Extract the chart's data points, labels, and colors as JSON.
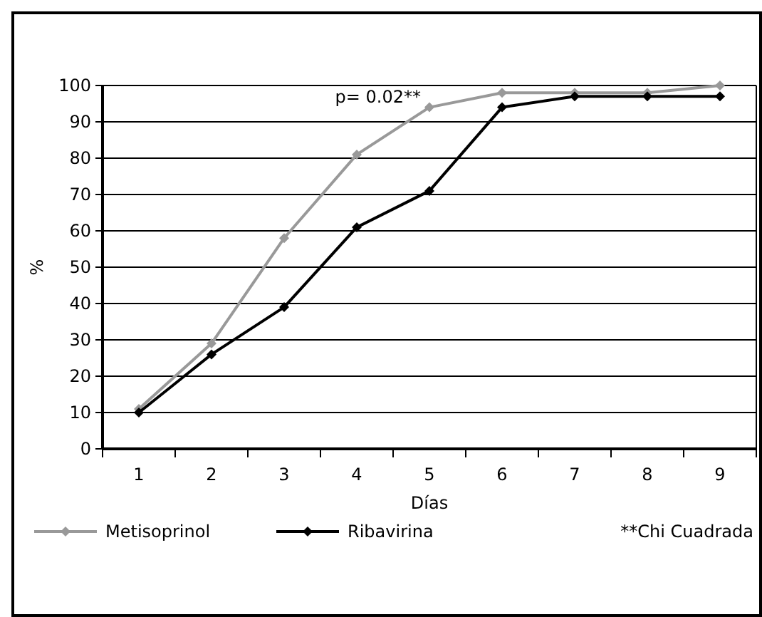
{
  "chart_data": {
    "type": "line",
    "xlabel": "Días",
    "ylabel": "%",
    "categories": [
      "1",
      "2",
      "3",
      "4",
      "5",
      "6",
      "7",
      "8",
      "9"
    ],
    "series": [
      {
        "name": "Metisoprinol",
        "color": "#999999",
        "values": [
          11,
          29,
          58,
          81,
          94,
          98,
          98,
          98,
          100
        ]
      },
      {
        "name": "Ribavirina",
        "color": "#000000",
        "values": [
          10,
          26,
          39,
          61,
          71,
          94,
          97,
          97,
          97
        ]
      }
    ],
    "ylim": [
      0,
      100
    ],
    "yticks": [
      0,
      10,
      20,
      30,
      40,
      50,
      60,
      70,
      80,
      90,
      100
    ],
    "grid": "y",
    "legend": "bottom",
    "marker": "diamond",
    "line_style": "solid",
    "annotations": [
      "p= 0.02**",
      "**Chi Cuadrada"
    ]
  }
}
